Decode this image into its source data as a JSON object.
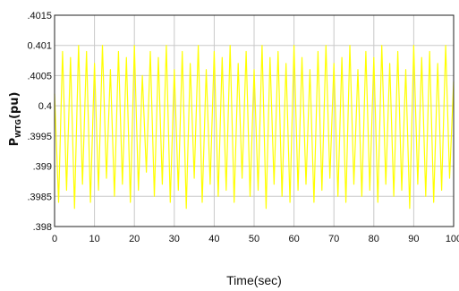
{
  "chart_data": {
    "type": "line",
    "xlabel": "Time(sec)",
    "ylabel_main": "P",
    "ylabel_sub": "WTG",
    "ylabel_unit": "(pu)",
    "xlim": [
      0,
      100
    ],
    "ylim": [
      0.398,
      0.4015
    ],
    "x_ticks": [
      0,
      10,
      20,
      30,
      40,
      50,
      60,
      70,
      80,
      90,
      100
    ],
    "y_ticks": [
      0.398,
      0.3985,
      0.399,
      0.3995,
      0.4,
      0.4005,
      0.401,
      0.4015
    ],
    "y_tick_labels": [
      ".398",
      ".3985",
      ".399",
      ".3995",
      "0.4",
      ".4005",
      "0.401",
      ".4015"
    ],
    "grid": true,
    "series": [
      {
        "color": "#ffff00",
        "x": [
          0,
          1,
          2,
          3,
          4,
          5,
          6,
          7,
          8,
          9,
          10,
          11,
          12,
          13,
          14,
          15,
          16,
          17,
          18,
          19,
          20,
          21,
          22,
          23,
          24,
          25,
          26,
          27,
          28,
          29,
          30,
          31,
          32,
          33,
          34,
          35,
          36,
          37,
          38,
          39,
          40,
          41,
          42,
          43,
          44,
          45,
          46,
          47,
          48,
          49,
          50,
          51,
          52,
          53,
          54,
          55,
          56,
          57,
          58,
          59,
          60,
          61,
          62,
          63,
          64,
          65,
          66,
          67,
          68,
          69,
          70,
          71,
          72,
          73,
          74,
          75,
          76,
          77,
          78,
          79,
          80,
          81,
          82,
          83,
          84,
          85,
          86,
          87,
          88,
          89,
          90,
          91,
          92,
          93,
          94,
          95,
          96,
          97,
          98,
          99,
          100
        ],
        "y": [
          0.4002,
          0.3984,
          0.4009,
          0.3986,
          0.4008,
          0.3983,
          0.401,
          0.3987,
          0.4009,
          0.3984,
          0.4007,
          0.3986,
          0.401,
          0.3988,
          0.4006,
          0.3985,
          0.4009,
          0.3987,
          0.4008,
          0.3984,
          0.401,
          0.3986,
          0.4005,
          0.3989,
          0.4009,
          0.3985,
          0.4008,
          0.3987,
          0.401,
          0.3984,
          0.4006,
          0.3986,
          0.4009,
          0.3983,
          0.4007,
          0.3988,
          0.401,
          0.3984,
          0.4006,
          0.3987,
          0.4009,
          0.3985,
          0.4008,
          0.3986,
          0.401,
          0.3984,
          0.4007,
          0.3988,
          0.4009,
          0.3985,
          0.4006,
          0.3986,
          0.401,
          0.3983,
          0.4008,
          0.3987,
          0.4009,
          0.3985,
          0.4007,
          0.3984,
          0.401,
          0.3986,
          0.4008,
          0.3987,
          0.4006,
          0.3984,
          0.4009,
          0.3986,
          0.401,
          0.3988,
          0.4007,
          0.3985,
          0.4008,
          0.3984,
          0.401,
          0.3987,
          0.4006,
          0.3985,
          0.4009,
          0.3986,
          0.4008,
          0.3984,
          0.401,
          0.3987,
          0.4007,
          0.3985,
          0.4009,
          0.3986,
          0.4006,
          0.3983,
          0.401,
          0.3987,
          0.4008,
          0.3985,
          0.4009,
          0.3984,
          0.4007,
          0.3986,
          0.401,
          0.3988,
          0.4004
        ]
      }
    ]
  }
}
